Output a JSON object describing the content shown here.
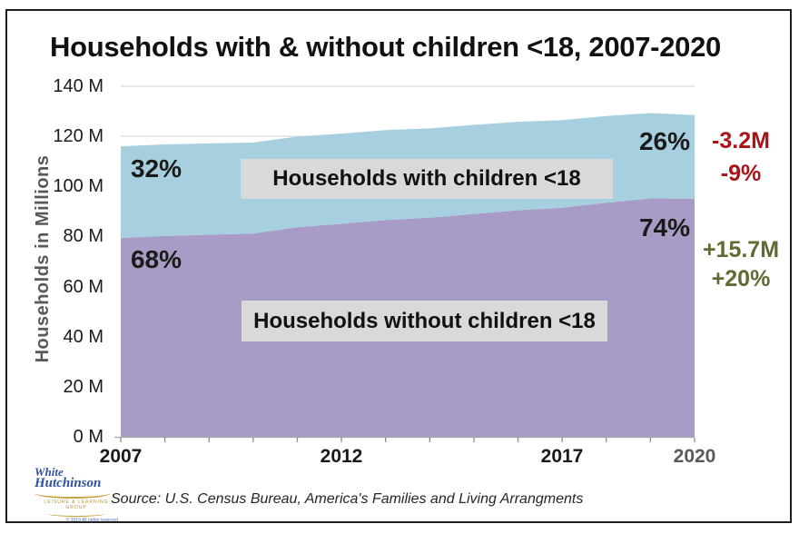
{
  "title": "Households with & without children <18, 2007-2020",
  "y_axis": {
    "title": "Households in Millions",
    "ticks": [
      "140 M",
      "120 M",
      "100 M",
      "80 M",
      "60 M",
      "40 M",
      "20 M",
      "0 M"
    ]
  },
  "x_axis": {
    "ticks": [
      "2007",
      "2012",
      "2017",
      "2020"
    ]
  },
  "series_labels": {
    "with_label": "Households with children <18",
    "without_label": "Households without children <18"
  },
  "annotations": {
    "with_share_start": "32%",
    "with_share_end": "26%",
    "without_share_start": "68%",
    "without_share_end": "74%",
    "with_change_abs": "-3.2M",
    "with_change_pct": "-9%",
    "without_change_abs": "+15.7M",
    "without_change_pct": "+20%"
  },
  "source": "Source: U.S. Census Bureau, America's Families and Living Arrangments",
  "logo": {
    "line1": "White",
    "line2": "Hutchinson",
    "tagline": "LEISURE & LEARNING GROUP",
    "copyright": "© 2019 All rights reserved"
  },
  "colors": {
    "with_children_fill": "#a6cfdf",
    "without_children_fill": "#a89bc5",
    "decline_red": "#a91418",
    "growth_olive": "#5f6b33",
    "label_box_bg": "#d9d9d9",
    "gridline": "#d9d9d9"
  },
  "chart_data": {
    "type": "area",
    "stacked": true,
    "title": "Households with & without children <18, 2007-2020",
    "xlabel": "",
    "ylabel": "Households in Millions",
    "ylim": [
      0,
      140
    ],
    "ytick_step": 20,
    "grid": true,
    "legend_position": "inside-area-labels",
    "x": [
      2007,
      2008,
      2009,
      2010,
      2011,
      2012,
      2013,
      2014,
      2015,
      2016,
      2017,
      2018,
      2019,
      2020
    ],
    "xticks_shown": [
      2007,
      2012,
      2017,
      2020
    ],
    "series": [
      {
        "name": "Households without children <18",
        "color": "#a89bc5",
        "values": [
          79.4,
          80.2,
          80.7,
          81.2,
          83.7,
          85.1,
          86.6,
          87.5,
          89.0,
          90.5,
          91.5,
          93.5,
          95.2,
          95.1
        ],
        "share_2007": "68%",
        "share_2020": "74%",
        "change_2007_2020": "+15.7M (+20%)"
      },
      {
        "name": "Households with children <18",
        "color": "#a6cfdf",
        "values": [
          36.6,
          36.6,
          36.5,
          36.3,
          36.2,
          36.0,
          35.9,
          35.7,
          35.6,
          35.3,
          35.0,
          34.6,
          34.1,
          33.4
        ],
        "share_2007": "32%",
        "share_2020": "26%",
        "change_2007_2020": "-3.2M (-9%)"
      }
    ]
  }
}
